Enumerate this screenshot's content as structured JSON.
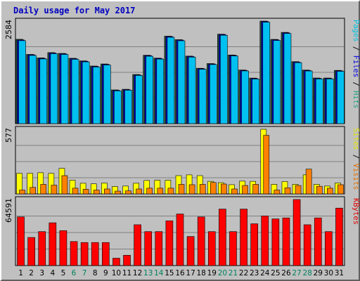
{
  "chart_data": {
    "type": "bar",
    "title": "Daily usage for May 2017",
    "categories": [
      "1",
      "2",
      "3",
      "4",
      "5",
      "6",
      "7",
      "8",
      "9",
      "10",
      "11",
      "12",
      "13",
      "14",
      "15",
      "16",
      "17",
      "18",
      "19",
      "20",
      "21",
      "22",
      "23",
      "24",
      "25",
      "26",
      "27",
      "28",
      "29",
      "30",
      "31"
    ],
    "weekend_days": [
      "6",
      "7",
      "13",
      "14",
      "20",
      "21",
      "27",
      "28"
    ],
    "panels": [
      {
        "id": "traffic",
        "ymax": 2584,
        "ymax_label": "2584",
        "legend": [
          {
            "text": "Pages",
            "color": "#00c0e0"
          },
          {
            "text": " / ",
            "color": "#000000"
          },
          {
            "text": "Files",
            "color": "#0000e0"
          },
          {
            "text": " / ",
            "color": "#000000"
          },
          {
            "text": "Hits",
            "color": "#20a080"
          }
        ],
        "series": [
          {
            "name": "Hits",
            "color": "#2a5a3c",
            "values": [
              2125,
              1745,
              1657,
              1790,
              1770,
              1647,
              1582,
              1452,
              1504,
              850,
              866,
              1238,
              1724,
              1652,
              2204,
              2116,
              1702,
              1395,
              1514,
              2255,
              1730,
              1352,
              1148,
              2584,
              2123,
              2300,
              1562,
              1350,
              1150,
              1150,
              1342
            ]
          },
          {
            "name": "Files",
            "color": "#0000d0",
            "values": [
              2108,
              1735,
              1646,
              1779,
              1760,
              1637,
              1572,
              1441,
              1494,
              840,
              856,
              1228,
              1714,
              1642,
              2194,
              2106,
              1692,
              1385,
              1504,
              2245,
              1720,
              1342,
              1138,
              2574,
              2113,
              2290,
              1552,
              1340,
              1140,
              1140,
              1332
            ]
          },
          {
            "name": "Pages",
            "color": "#00c0f0",
            "values": [
              2090,
              1718,
              1630,
              1762,
              1743,
              1620,
              1556,
              1426,
              1478,
              826,
              842,
              1214,
              1698,
              1626,
              2176,
              2088,
              1676,
              1370,
              1489,
              2226,
              1704,
              1328,
              1124,
              2556,
              2095,
              2272,
              1536,
              1326,
              1126,
              1126,
              1318
            ]
          }
        ]
      },
      {
        "id": "visitors",
        "ymax": 577,
        "ymax_label": "577",
        "legend": [
          {
            "text": "Sites",
            "color": "#e0e000"
          },
          {
            "text": " / ",
            "color": "#000000"
          },
          {
            "text": "Visits",
            "color": "#e07000"
          }
        ],
        "series": [
          {
            "name": "Sites",
            "color": "#ffff00",
            "values": [
              183,
              183,
              189,
              183,
              228,
              122,
              95,
              90,
              97,
              66,
              70,
              95,
              120,
              122,
              122,
              163,
              170,
              163,
              112,
              100,
              82,
              114,
              112,
              577,
              85,
              110,
              85,
              170,
              85,
              70,
              97
            ]
          },
          {
            "name": "Visits",
            "color": "#ff8000",
            "values": [
              34,
              58,
              85,
              78,
              163,
              51,
              41,
              34,
              44,
              25,
              27,
              44,
              51,
              51,
              51,
              85,
              82,
              85,
              102,
              88,
              44,
              75,
              85,
              523,
              34,
              54,
              75,
              221,
              68,
              51,
              82
            ]
          }
        ]
      },
      {
        "id": "kbytes",
        "ymax": 64591,
        "ymax_label": "64591",
        "legend": [
          {
            "text": "KBytes",
            "color": "#e00000"
          }
        ],
        "series": [
          {
            "name": "KBytes",
            "color": "#ff0000",
            "values": [
              47550,
              27475,
              33211,
              41818,
              34171,
              23492,
              22533,
              22533,
              22533,
              7193,
              10061,
              39906,
              33211,
              33211,
              43731,
              50418,
              28433,
              47550,
              33211,
              55239,
              33211,
              55239,
              40861,
              48505,
              45639,
              46593,
              64591,
              39906,
              46593,
              33211,
              56195
            ]
          }
        ]
      }
    ],
    "colors": {
      "background": "#c0c0c0",
      "plot_background": "#c0c0c0",
      "gridline": "#808080",
      "weekday_label": "#000000",
      "weekend_label": "#00805c"
    },
    "grid": true
  }
}
